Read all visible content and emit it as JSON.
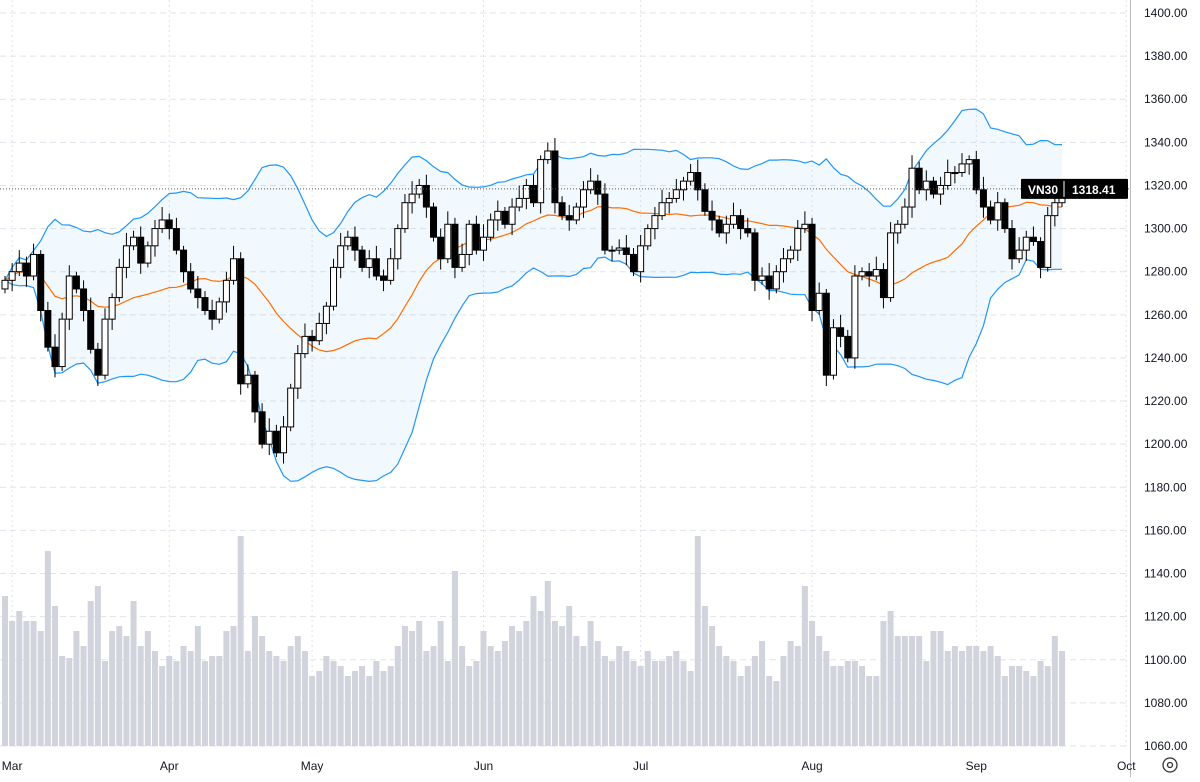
{
  "chart_data": {
    "type": "candlestick",
    "symbol": "VN30",
    "last_price": "1318.41",
    "ylim": [
      1060,
      1400
    ],
    "y_ticks": [
      "1400.00",
      "1380.00",
      "1360.00",
      "1340.00",
      "1320.00",
      "1300.00",
      "1280.00",
      "1260.00",
      "1240.00",
      "1220.00",
      "1200.00",
      "1180.00",
      "1160.00",
      "1140.00",
      "1120.00",
      "1100.00",
      "1080.00",
      "1060.00"
    ],
    "x_ticks": [
      {
        "label": "Mar",
        "index": 1
      },
      {
        "label": "Apr",
        "index": 23
      },
      {
        "label": "May",
        "index": 43
      },
      {
        "label": "Jun",
        "index": 67
      },
      {
        "label": "Jul",
        "index": 89
      },
      {
        "label": "Aug",
        "index": 113
      },
      {
        "label": "Sep",
        "index": 136
      },
      {
        "label": "Oct",
        "index": 157
      }
    ],
    "grid": true,
    "close": [
      1276,
      1280,
      1284,
      1278,
      1288,
      1262,
      1245,
      1236,
      1258,
      1278,
      1272,
      1262,
      1244,
      1232,
      1258,
      1268,
      1282,
      1292,
      1296,
      1284,
      1292,
      1300,
      1304,
      1300,
      1290,
      1280,
      1272,
      1268,
      1262,
      1258,
      1266,
      1276,
      1286,
      1228,
      1232,
      1215,
      1200,
      1206,
      1196,
      1208,
      1226,
      1242,
      1250,
      1248,
      1256,
      1264,
      1282,
      1292,
      1296,
      1290,
      1282,
      1286,
      1278,
      1276,
      1286,
      1300,
      1312,
      1316,
      1320,
      1310,
      1296,
      1286,
      1302,
      1282,
      1288,
      1302,
      1290,
      1296,
      1304,
      1308,
      1302,
      1310,
      1314,
      1320,
      1312,
      1332,
      1336,
      1312,
      1306,
      1304,
      1310,
      1318,
      1322,
      1316,
      1290,
      1290,
      1291,
      1288,
      1280,
      1292,
      1300,
      1306,
      1312,
      1314,
      1318,
      1322,
      1326,
      1318,
      1308,
      1304,
      1298,
      1302,
      1306,
      1300,
      1298,
      1276,
      1278,
      1272,
      1280,
      1286,
      1290,
      1300,
      1302,
      1262,
      1270,
      1232,
      1254,
      1250,
      1240,
      1278,
      1280,
      1278,
      1281,
      1268,
      1298,
      1302,
      1310,
      1328,
      1318,
      1322,
      1316,
      1320,
      1326,
      1326,
      1330,
      1332,
      1318,
      1310,
      1304,
      1312,
      1300,
      1286,
      1290,
      1296,
      1294,
      1282,
      1306,
      1312,
      1318.41
    ],
    "volume": [
      150,
      125,
      135,
      125,
      125,
      115,
      195,
      140,
      90,
      88,
      115,
      100,
      145,
      160,
      85,
      115,
      120,
      110,
      145,
      100,
      115,
      95,
      80,
      90,
      85,
      100,
      95,
      120,
      85,
      90,
      90,
      115,
      120,
      210,
      95,
      130,
      110,
      95,
      90,
      85,
      100,
      110,
      95,
      70,
      75,
      90,
      85,
      80,
      70,
      75,
      80,
      70,
      85,
      75,
      80,
      100,
      120,
      115,
      125,
      95,
      100,
      125,
      85,
      175,
      100,
      80,
      85,
      115,
      100,
      95,
      105,
      120,
      115,
      125,
      150,
      135,
      165,
      125,
      120,
      140,
      110,
      100,
      125,
      105,
      90,
      85,
      100,
      95,
      85,
      80,
      95,
      85,
      85,
      90,
      95,
      85,
      75,
      210,
      140,
      120,
      100,
      90,
      85,
      70,
      80,
      90,
      105,
      70,
      65,
      90,
      105,
      100,
      160,
      125,
      110,
      95,
      80,
      80,
      85,
      85,
      80,
      70,
      70,
      125,
      135,
      110,
      110,
      110,
      110,
      85,
      115,
      115,
      95,
      100,
      95,
      100,
      100,
      95,
      100,
      90,
      70,
      80,
      80,
      75,
      70,
      85,
      80,
      110,
      95
    ],
    "indicators": {
      "bollinger_bands": true,
      "band_color": "#2196f3",
      "basis_color": "#ff6d00"
    },
    "colors": {
      "up": "#ffffff",
      "down": "#000000",
      "volume": "#d1d4dc",
      "price_label_bg": "#000000"
    }
  },
  "icons": {
    "settings": "settings-gear-icon"
  }
}
